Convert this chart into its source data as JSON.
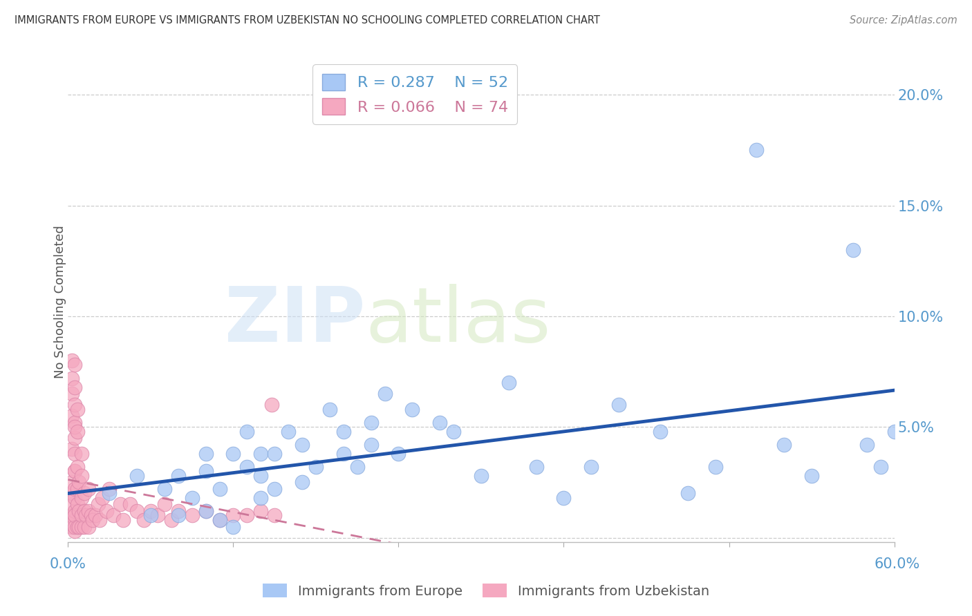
{
  "title": "IMMIGRANTS FROM EUROPE VS IMMIGRANTS FROM UZBEKISTAN NO SCHOOLING COMPLETED CORRELATION CHART",
  "source": "Source: ZipAtlas.com",
  "ylabel": "No Schooling Completed",
  "legend_europe": {
    "R": 0.287,
    "N": 52
  },
  "legend_uzbekistan": {
    "R": 0.066,
    "N": 74
  },
  "xlim": [
    0.0,
    0.6
  ],
  "ylim": [
    -0.002,
    0.215
  ],
  "yticks": [
    0.0,
    0.05,
    0.1,
    0.15,
    0.2
  ],
  "ytick_labels": [
    "",
    "5.0%",
    "10.0%",
    "15.0%",
    "20.0%"
  ],
  "europe_color": "#a8c8f5",
  "europe_edge_color": "#88aadd",
  "uzbekistan_color": "#f5a8c0",
  "uzbekistan_edge_color": "#dd88aa",
  "europe_line_color": "#2255aa",
  "uzbekistan_line_color": "#cc7799",
  "background_color": "#ffffff",
  "grid_color": "#cccccc",
  "tick_color": "#5599cc",
  "title_color": "#333333",
  "ylabel_color": "#555555",
  "source_color": "#888888",
  "europe_scatter_x": [
    0.03,
    0.05,
    0.06,
    0.07,
    0.08,
    0.08,
    0.09,
    0.1,
    0.1,
    0.1,
    0.11,
    0.11,
    0.12,
    0.12,
    0.13,
    0.13,
    0.14,
    0.14,
    0.14,
    0.15,
    0.15,
    0.16,
    0.17,
    0.17,
    0.18,
    0.19,
    0.2,
    0.2,
    0.21,
    0.22,
    0.22,
    0.23,
    0.24,
    0.25,
    0.27,
    0.28,
    0.3,
    0.32,
    0.34,
    0.36,
    0.38,
    0.4,
    0.43,
    0.45,
    0.47,
    0.5,
    0.52,
    0.54,
    0.57,
    0.58,
    0.59,
    0.6
  ],
  "europe_scatter_y": [
    0.02,
    0.028,
    0.01,
    0.022,
    0.01,
    0.028,
    0.018,
    0.012,
    0.03,
    0.038,
    0.008,
    0.022,
    0.005,
    0.038,
    0.032,
    0.048,
    0.018,
    0.028,
    0.038,
    0.038,
    0.022,
    0.048,
    0.025,
    0.042,
    0.032,
    0.058,
    0.038,
    0.048,
    0.032,
    0.042,
    0.052,
    0.065,
    0.038,
    0.058,
    0.052,
    0.048,
    0.028,
    0.07,
    0.032,
    0.018,
    0.032,
    0.06,
    0.048,
    0.02,
    0.032,
    0.175,
    0.042,
    0.028,
    0.13,
    0.042,
    0.032,
    0.048
  ],
  "uzbekistan_scatter_x": [
    0.003,
    0.003,
    0.003,
    0.003,
    0.003,
    0.003,
    0.003,
    0.003,
    0.003,
    0.003,
    0.005,
    0.005,
    0.005,
    0.005,
    0.005,
    0.005,
    0.005,
    0.005,
    0.005,
    0.005,
    0.005,
    0.005,
    0.005,
    0.005,
    0.005,
    0.005,
    0.007,
    0.007,
    0.007,
    0.007,
    0.007,
    0.007,
    0.008,
    0.008,
    0.008,
    0.01,
    0.01,
    0.01,
    0.01,
    0.01,
    0.012,
    0.012,
    0.012,
    0.013,
    0.015,
    0.015,
    0.015,
    0.017,
    0.018,
    0.02,
    0.022,
    0.023,
    0.025,
    0.028,
    0.03,
    0.033,
    0.038,
    0.04,
    0.045,
    0.05,
    0.055,
    0.06,
    0.065,
    0.07,
    0.075,
    0.08,
    0.09,
    0.1,
    0.11,
    0.12,
    0.13,
    0.14,
    0.148,
    0.15
  ],
  "uzbekistan_scatter_y": [
    0.005,
    0.01,
    0.015,
    0.02,
    0.025,
    0.04,
    0.055,
    0.065,
    0.072,
    0.08,
    0.003,
    0.008,
    0.012,
    0.018,
    0.022,
    0.03,
    0.038,
    0.045,
    0.052,
    0.06,
    0.068,
    0.005,
    0.01,
    0.03,
    0.05,
    0.078,
    0.005,
    0.015,
    0.022,
    0.032,
    0.048,
    0.058,
    0.005,
    0.012,
    0.025,
    0.005,
    0.01,
    0.018,
    0.028,
    0.038,
    0.005,
    0.012,
    0.02,
    0.01,
    0.005,
    0.012,
    0.022,
    0.01,
    0.008,
    0.01,
    0.015,
    0.008,
    0.018,
    0.012,
    0.022,
    0.01,
    0.015,
    0.008,
    0.015,
    0.012,
    0.008,
    0.012,
    0.01,
    0.015,
    0.008,
    0.012,
    0.01,
    0.012,
    0.008,
    0.01,
    0.01,
    0.012,
    0.06,
    0.01
  ]
}
